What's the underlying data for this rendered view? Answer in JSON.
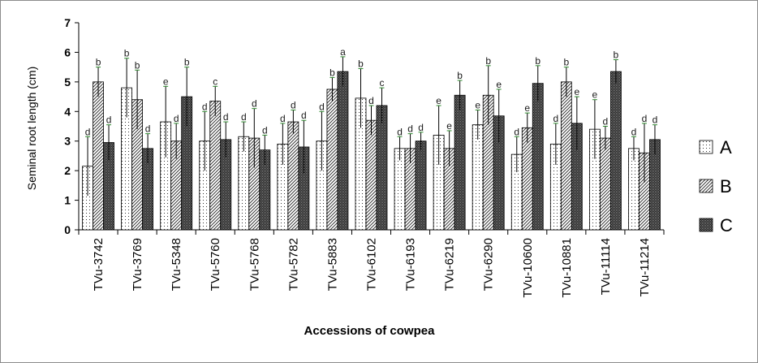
{
  "chart_data": {
    "type": "bar",
    "title": "",
    "xlabel": "Accessions of cowpea",
    "ylabel": "Seminal root length (cm)",
    "ylim": [
      0,
      7
    ],
    "yticks": [
      0,
      1,
      2,
      3,
      4,
      5,
      6,
      7
    ],
    "grid": false,
    "legend_position": "right",
    "categories": [
      "TVu-3742",
      "TVu-3769",
      "TVu-5348",
      "TVu-5760",
      "TVu-5768",
      "TVu-5782",
      "TVu-5883",
      "TVu-6102",
      "TVu-6193",
      "TVu-6219",
      "TVu-6290",
      "TVu-10600",
      "TVu-10881",
      "TVu-11114",
      "TVu-11214"
    ],
    "series": [
      {
        "name": "A",
        "pattern": "dots",
        "values": [
          2.15,
          4.8,
          3.65,
          3.0,
          3.15,
          2.9,
          3.0,
          4.45,
          2.75,
          3.2,
          3.55,
          2.55,
          2.9,
          3.4,
          2.75
        ],
        "errors": [
          1.0,
          1.0,
          1.2,
          1.0,
          0.5,
          0.7,
          1.0,
          1.0,
          0.4,
          1.0,
          0.5,
          0.6,
          0.7,
          1.0,
          0.4
        ],
        "letters": [
          "d",
          "b",
          "e",
          "d",
          "d",
          "d",
          "d",
          "b",
          "d",
          "e",
          "e",
          "d",
          "d",
          "e",
          "d"
        ]
      },
      {
        "name": "B",
        "pattern": "diagonal",
        "values": [
          5.0,
          4.4,
          3.0,
          4.35,
          3.1,
          3.65,
          4.75,
          3.7,
          2.75,
          2.75,
          4.55,
          3.45,
          5.0,
          3.1,
          2.6
        ],
        "errors": [
          0.5,
          1.0,
          0.6,
          0.5,
          1.0,
          0.4,
          0.4,
          0.5,
          0.5,
          0.6,
          1.0,
          0.5,
          0.5,
          0.4,
          1.0
        ],
        "letters": [
          "b",
          "b",
          "d",
          "c",
          "d",
          "d",
          "b",
          "d",
          "d",
          "e",
          "b",
          "e",
          "b",
          "d",
          "d"
        ]
      },
      {
        "name": "C",
        "pattern": "checker",
        "values": [
          2.95,
          2.75,
          4.5,
          3.05,
          2.7,
          2.8,
          5.35,
          4.2,
          3.0,
          4.55,
          3.85,
          4.95,
          3.6,
          5.35,
          3.05
        ],
        "errors": [
          0.6,
          0.5,
          1.0,
          0.6,
          0.5,
          0.9,
          0.5,
          0.6,
          0.3,
          0.5,
          0.9,
          0.6,
          0.9,
          0.4,
          0.5
        ],
        "letters": [
          "d",
          "d",
          "b",
          "d",
          "d",
          "d",
          "a",
          "c",
          "d",
          "b",
          "e",
          "b",
          "e",
          "b",
          "d"
        ]
      }
    ]
  }
}
